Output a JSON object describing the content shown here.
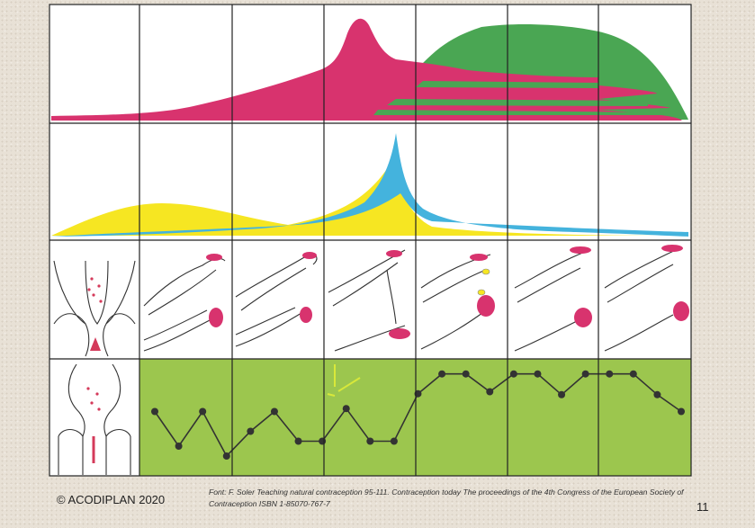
{
  "copyright": "© ACODIPLAN 2020",
  "source": "Font: F. Soler Teaching natural contraception 95-111. Contraception today The proceedings of the 4th Congress of the European Society of Contraception ISBN 1-85070-767-7",
  "page_number": "11",
  "colors": {
    "pink": "#d8336e",
    "green": "#4aa653",
    "yellow": "#f6e622",
    "blue": "#44b3dd",
    "temp_background": "#9cc64e",
    "cervix_mark": "#d43a5a",
    "dots": "#333333"
  },
  "columns": 7,
  "temperature_levels": [
    0.55,
    0.2,
    0.55,
    0.1,
    0.35,
    0.55,
    0.25,
    0.25,
    0.58,
    0.25,
    0.25,
    0.73,
    0.93,
    0.93,
    0.75,
    0.93,
    0.93,
    0.72,
    0.93,
    0.93,
    0.93,
    0.72,
    0.55
  ]
}
